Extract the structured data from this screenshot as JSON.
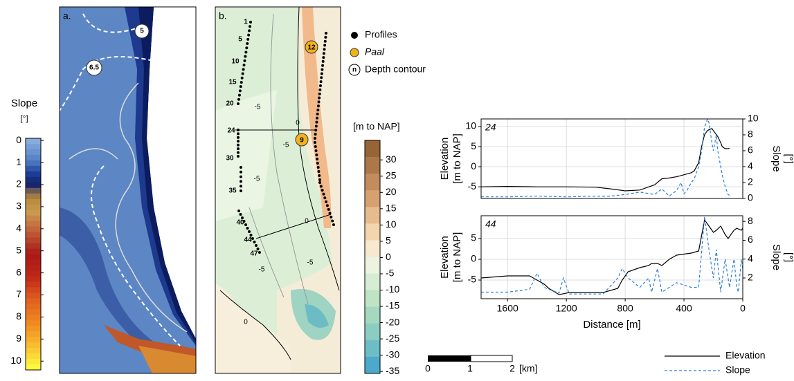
{
  "map_a": {
    "label": "a.",
    "contour_labels": [
      "5",
      "6.5"
    ]
  },
  "map_b": {
    "label": "b.",
    "profile_labels": [
      "1",
      "5",
      "10",
      "15",
      "20",
      "24",
      "30",
      "35",
      "40",
      "44",
      "47"
    ],
    "paal_labels": [
      "12",
      "9"
    ],
    "contour_labels": [
      "-5",
      "0",
      "-5",
      "-5",
      "0",
      "-5",
      "-5",
      "0"
    ]
  },
  "slope_colorbar": {
    "title": "Slope",
    "unit": "[°]",
    "lim": [
      -0.1,
      10.4
    ],
    "ticks": [
      0,
      1,
      2,
      3,
      4,
      5,
      6,
      7,
      8,
      9,
      10
    ]
  },
  "depth_colorbar": {
    "title": "[m to NAP]",
    "lim": [
      36,
      -35.6
    ],
    "ticks": [
      30,
      25,
      20,
      15,
      10,
      5,
      0,
      -5,
      -10,
      -15,
      -20,
      -25,
      -30,
      -35
    ]
  },
  "map_legend": {
    "items": [
      "Profiles",
      "Paal",
      "Depth contour"
    ],
    "contour_symbol": "n"
  },
  "scale_bar": {
    "ticks": [
      0,
      1,
      2
    ],
    "unit": "[km]"
  },
  "chart_data": [
    {
      "type": "line",
      "label": "24",
      "ylabel": [
        "Elevation",
        "[m to NAP]"
      ],
      "y2label": [
        "Slope",
        "[°]"
      ],
      "grid": true,
      "xlim": [
        1780,
        0
      ],
      "ylim": [
        -7.9,
        11.9
      ],
      "yticks": [
        -5,
        0,
        5,
        10
      ],
      "y2lim": [
        0,
        10
      ],
      "y2ticks": [
        0,
        2,
        4,
        6,
        8,
        10
      ],
      "x": [
        1780,
        1600,
        1400,
        1200,
        1000,
        900,
        800,
        700,
        600,
        550,
        500,
        450,
        420,
        400,
        380,
        350,
        330,
        300,
        280,
        260,
        240,
        230,
        210,
        200,
        180,
        170,
        150,
        140,
        120,
        100,
        90
      ],
      "series": [
        {
          "name": "Elevation",
          "color": "#000000",
          "linestyle": "solid",
          "values": [
            -5,
            -4.9,
            -5,
            -5,
            -5.1,
            -5.5,
            -6,
            -5.8,
            -4.5,
            -3,
            -2.8,
            -2.5,
            -2.2,
            -2,
            -1.8,
            -1.5,
            -1,
            1,
            5,
            8,
            9,
            9.2,
            9.5,
            9,
            8,
            7.5,
            6,
            5,
            4.5,
            4.5,
            4.6
          ]
        },
        {
          "name": "Slope",
          "color": "#2a7fd6",
          "linestyle": "dashed",
          "axis": "y2",
          "values": [
            0.2,
            0.2,
            0.3,
            0.2,
            0.3,
            0.3,
            0.5,
            0.8,
            0.5,
            1.2,
            0.3,
            1,
            2,
            0.6,
            1,
            2,
            2.5,
            4,
            6,
            9,
            10,
            9.5,
            7,
            6,
            8,
            6,
            4,
            3,
            1.5,
            0.5,
            0.4
          ]
        }
      ]
    },
    {
      "type": "line",
      "label": "44",
      "ylabel": [
        "Elevation",
        "[m to NAP]"
      ],
      "y2label": [
        "Slope",
        "[°]"
      ],
      "grid": true,
      "xlabel": "Distance [m]",
      "xlim": [
        1780,
        0
      ],
      "xticks": [
        1600,
        1200,
        800,
        400,
        0
      ],
      "ylim": [
        -9.5,
        10.5
      ],
      "yticks": [
        -5,
        0,
        5
      ],
      "y2lim": [
        -0.2,
        8.6
      ],
      "y2ticks": [
        2,
        4,
        6,
        8
      ],
      "x": [
        1780,
        1600,
        1450,
        1400,
        1350,
        1320,
        1250,
        1220,
        1180,
        1100,
        950,
        850,
        820,
        780,
        700,
        640,
        620,
        580,
        550,
        500,
        450,
        350,
        300,
        260,
        230,
        200,
        180,
        150,
        120,
        100,
        90,
        60,
        40,
        30,
        10,
        0
      ],
      "series": [
        {
          "name": "Elevation",
          "color": "#000000",
          "linestyle": "solid",
          "values": [
            -4.5,
            -4,
            -4,
            -5,
            -6,
            -7,
            -8.5,
            -8.3,
            -8,
            -8,
            -8,
            -7,
            -5,
            -3,
            -2,
            -1.5,
            -1,
            -1,
            -1.5,
            0,
            1,
            1.5,
            2,
            9.5,
            8,
            6.5,
            7,
            8,
            6,
            5,
            5.5,
            7,
            7.5,
            7.3,
            7,
            7.5
          ]
        },
        {
          "name": "Slope",
          "color": "#2a7fd6",
          "linestyle": "dashed",
          "axis": "y2",
          "values": [
            0.5,
            0.5,
            0.8,
            2.5,
            1,
            0.8,
            0.4,
            2,
            0.3,
            0.3,
            0.3,
            2,
            3,
            2,
            1,
            2,
            0.5,
            3,
            0.5,
            1,
            1.5,
            1,
            1,
            8.5,
            5,
            2,
            5,
            0.5,
            4,
            2,
            1,
            4,
            1,
            0.5,
            4,
            3
          ]
        }
      ]
    }
  ]
}
